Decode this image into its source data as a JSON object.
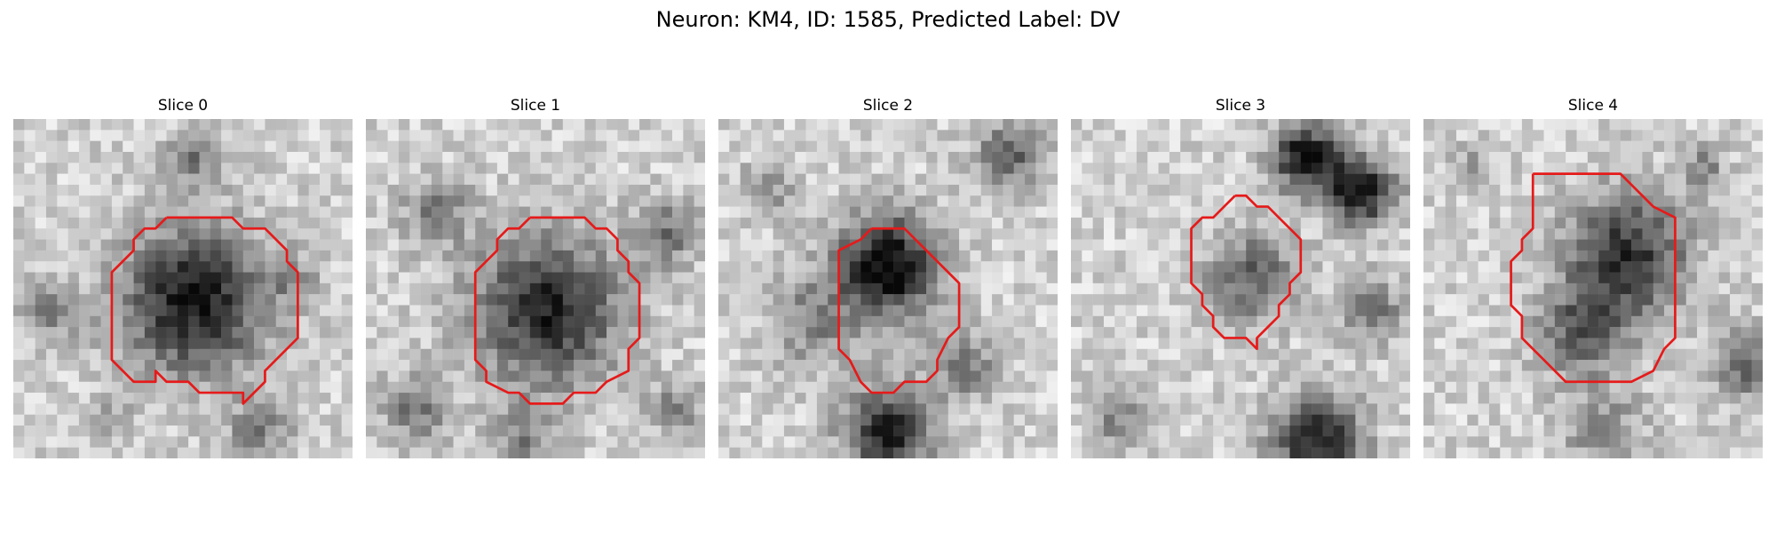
{
  "figure": {
    "title": "Neuron: KM4, ID: 1585, Predicted Label: DV",
    "contour_color": "#e61a1a",
    "grid_size": 31,
    "panels": [
      {
        "title": "Slice 0",
        "contour": [
          [
            14,
            9
          ],
          [
            20,
            9
          ],
          [
            21,
            10
          ],
          [
            23,
            10
          ],
          [
            25,
            12
          ],
          [
            25,
            13
          ],
          [
            26,
            14
          ],
          [
            26,
            20
          ],
          [
            24,
            22
          ],
          [
            23,
            23
          ],
          [
            23,
            24
          ],
          [
            21,
            26
          ],
          [
            21,
            25
          ],
          [
            20,
            25
          ],
          [
            17,
            25
          ],
          [
            16,
            24
          ],
          [
            14,
            24
          ],
          [
            13,
            23
          ],
          [
            13,
            24
          ],
          [
            11,
            24
          ],
          [
            10,
            23
          ],
          [
            9,
            22
          ],
          [
            9,
            21
          ],
          [
            9,
            19
          ],
          [
            9,
            17
          ],
          [
            9,
            14
          ],
          [
            11,
            12
          ],
          [
            11,
            11
          ],
          [
            12,
            10
          ],
          [
            13,
            10
          ],
          [
            14,
            9
          ]
        ]
      },
      {
        "title": "Slice 1",
        "contour": [
          [
            15,
            9
          ],
          [
            20,
            9
          ],
          [
            21,
            10
          ],
          [
            22,
            10
          ],
          [
            23,
            11
          ],
          [
            23,
            12
          ],
          [
            24,
            13
          ],
          [
            24,
            14
          ],
          [
            25,
            15
          ],
          [
            25,
            20
          ],
          [
            24,
            21
          ],
          [
            24,
            23
          ],
          [
            22,
            24
          ],
          [
            21,
            25
          ],
          [
            19,
            25
          ],
          [
            18,
            26
          ],
          [
            15,
            26
          ],
          [
            14,
            25
          ],
          [
            13,
            25
          ],
          [
            11,
            24
          ],
          [
            11,
            23
          ],
          [
            10,
            22
          ],
          [
            10,
            20
          ],
          [
            10,
            16
          ],
          [
            10,
            14
          ],
          [
            11,
            13
          ],
          [
            12,
            12
          ],
          [
            12,
            11
          ],
          [
            13,
            10
          ],
          [
            14,
            10
          ],
          [
            15,
            9
          ]
        ]
      },
      {
        "title": "Slice 2",
        "contour": [
          [
            14,
            10
          ],
          [
            17,
            10
          ],
          [
            18,
            11
          ],
          [
            19,
            12
          ],
          [
            20,
            13
          ],
          [
            21,
            14
          ],
          [
            22,
            15
          ],
          [
            22,
            19
          ],
          [
            21,
            20
          ],
          [
            20,
            22
          ],
          [
            20,
            23
          ],
          [
            19,
            24
          ],
          [
            17,
            24
          ],
          [
            16,
            25
          ],
          [
            14,
            25
          ],
          [
            13,
            24
          ],
          [
            12,
            22
          ],
          [
            11,
            21
          ],
          [
            11,
            19
          ],
          [
            11,
            14
          ],
          [
            11,
            12
          ],
          [
            13,
            11
          ],
          [
            14,
            10
          ]
        ]
      },
      {
        "title": "Slice 3",
        "contour": [
          [
            15,
            7
          ],
          [
            16,
            7
          ],
          [
            17,
            8
          ],
          [
            18,
            8
          ],
          [
            19,
            9
          ],
          [
            20,
            10
          ],
          [
            21,
            11
          ],
          [
            21,
            14
          ],
          [
            20,
            15
          ],
          [
            20,
            16
          ],
          [
            19,
            17
          ],
          [
            19,
            18
          ],
          [
            18,
            19
          ],
          [
            17,
            20
          ],
          [
            17,
            21
          ],
          [
            16,
            20
          ],
          [
            14,
            20
          ],
          [
            13,
            19
          ],
          [
            13,
            18
          ],
          [
            12,
            17
          ],
          [
            12,
            16
          ],
          [
            11,
            15
          ],
          [
            11,
            10
          ],
          [
            12,
            9
          ],
          [
            13,
            9
          ],
          [
            14,
            8
          ],
          [
            15,
            7
          ]
        ]
      },
      {
        "title": "Slice 4",
        "contour": [
          [
            10,
            5
          ],
          [
            18,
            5
          ],
          [
            19,
            6
          ],
          [
            20,
            7
          ],
          [
            21,
            8
          ],
          [
            23,
            9
          ],
          [
            23,
            20
          ],
          [
            22,
            21
          ],
          [
            21,
            23
          ],
          [
            19,
            24
          ],
          [
            13,
            24
          ],
          [
            11,
            22
          ],
          [
            10,
            21
          ],
          [
            9,
            20
          ],
          [
            9,
            18
          ],
          [
            8,
            17
          ],
          [
            8,
            15
          ],
          [
            8,
            13
          ],
          [
            9,
            12
          ],
          [
            9,
            11
          ],
          [
            10,
            10
          ],
          [
            10,
            9
          ],
          [
            10,
            7
          ],
          [
            10,
            5
          ]
        ]
      }
    ]
  }
}
